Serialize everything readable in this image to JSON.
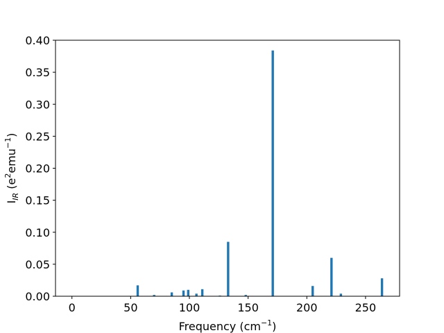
{
  "chart_data": {
    "type": "bar",
    "title": "",
    "xlabel": "Frequency (cm",
    "xlabel_sup": "−1",
    "xlabel_end": ")",
    "ylabel": "I",
    "ylabel_sub": "IR",
    "ylabel_mid": " (e",
    "ylabel_sup1": "2",
    "ylabel_mid2": "emu",
    "ylabel_sup2": "−1",
    "ylabel_end": ")",
    "xlim": [
      -14,
      279
    ],
    "ylim": [
      0,
      0.4
    ],
    "xticks": [
      0,
      50,
      100,
      150,
      200,
      250
    ],
    "yticks": [
      0.0,
      0.05,
      0.1,
      0.15,
      0.2,
      0.25,
      0.3,
      0.35,
      0.4
    ],
    "ytick_labels": [
      "0.00",
      "0.05",
      "0.10",
      "0.15",
      "0.20",
      "0.25",
      "0.30",
      "0.35",
      "0.40"
    ],
    "bar_width": 2,
    "bar_color": "#1f77b4",
    "grid": false,
    "x": [
      56,
      70,
      85,
      95,
      99,
      106,
      111,
      126,
      133,
      148,
      171,
      205,
      221,
      229,
      264
    ],
    "values": [
      0.017,
      0.002,
      0.006,
      0.009,
      0.01,
      0.004,
      0.011,
      0.001,
      0.085,
      0.002,
      0.384,
      0.016,
      0.06,
      0.004,
      0.028
    ]
  }
}
